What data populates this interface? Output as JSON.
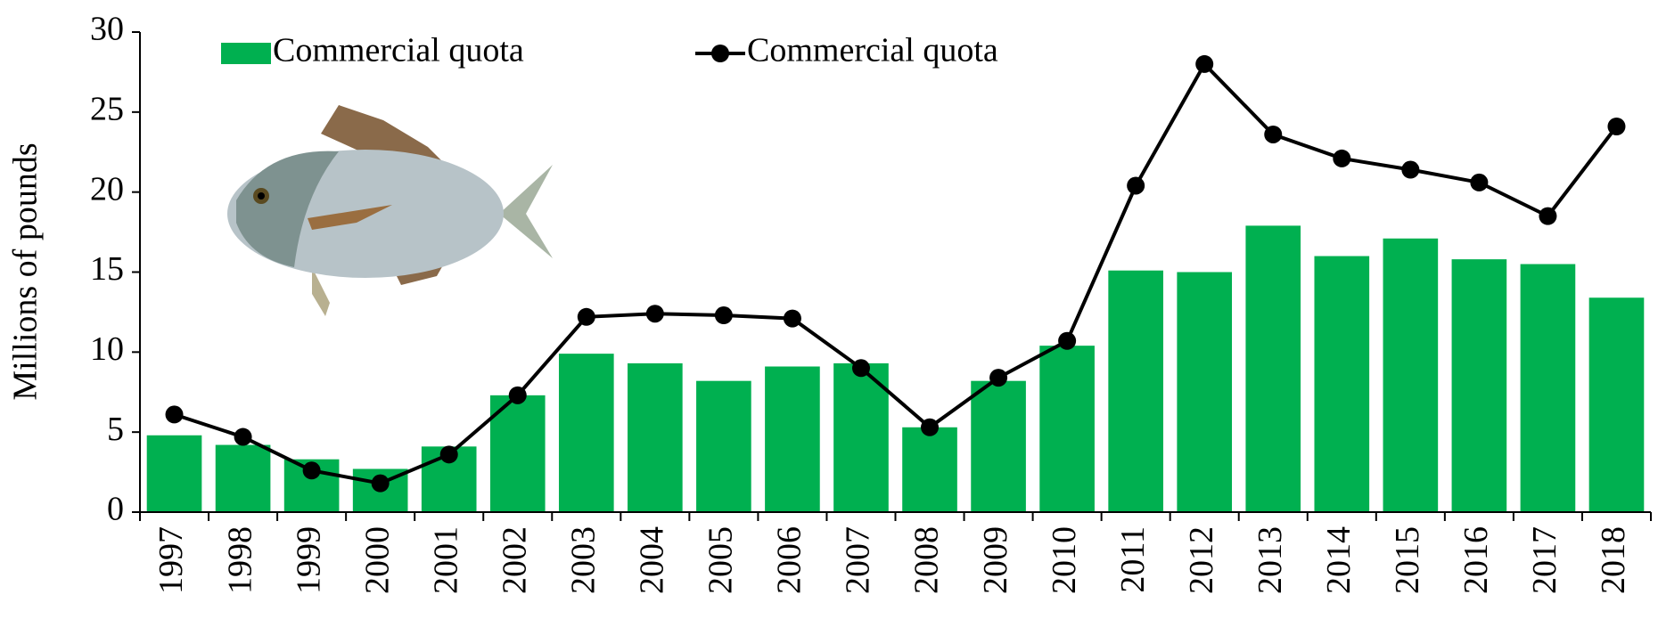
{
  "chart_data": {
    "type": "bar",
    "y_label": "Millions of pounds",
    "categories": [
      "1997",
      "1998",
      "1999",
      "2000",
      "2001",
      "2002",
      "2003",
      "2004",
      "2005",
      "2006",
      "2007",
      "2008",
      "2009",
      "2010",
      "2011",
      "2012",
      "2013",
      "2014",
      "2015",
      "2016",
      "2017",
      "2018"
    ],
    "series": [
      {
        "name": "Commercial quota",
        "type": "bar",
        "color": "#00b050",
        "values": [
          4.8,
          4.2,
          3.3,
          2.7,
          4.1,
          7.3,
          9.9,
          9.3,
          8.2,
          9.1,
          9.3,
          5.3,
          8.2,
          10.4,
          15.1,
          15.0,
          17.9,
          16.0,
          17.1,
          15.8,
          15.5,
          13.4
        ]
      },
      {
        "name": "Commercial quota",
        "type": "line",
        "color": "#000000",
        "values": [
          6.1,
          4.7,
          2.6,
          1.8,
          3.6,
          7.3,
          12.2,
          12.4,
          12.3,
          12.1,
          9.0,
          5.3,
          8.4,
          10.7,
          20.4,
          28.0,
          23.6,
          22.1,
          21.4,
          20.6,
          18.5,
          24.1
        ]
      }
    ],
    "ylim": [
      0,
      30
    ],
    "yticks": [
      0,
      5,
      10,
      15,
      20,
      25,
      30
    ],
    "grid": false
  }
}
